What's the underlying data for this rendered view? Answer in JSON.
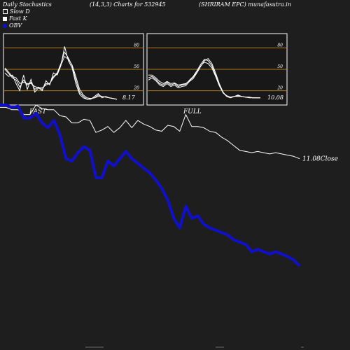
{
  "header": {
    "left": "Daily Stochastics",
    "center": "(14,3,3) Charts for 532945",
    "right": "(SHRIRAM EPC) munafasutra.in"
  },
  "legend": {
    "slow_d": "Slow  D",
    "fast_k": "Fast K",
    "obv": "OBV"
  },
  "colors": {
    "background": "#1e1e1e",
    "panel_background": "#181818",
    "level_line": "#b07a1e",
    "stoch_lines": "#ffffff",
    "close_line": "#ffffff",
    "obv_line": "#1010cc"
  },
  "chart_data": [
    {
      "type": "line",
      "panel_label": "FAST",
      "last_value_label": "8.17",
      "yticks": [
        "80",
        "50",
        "20"
      ],
      "ylim": [
        0,
        100
      ],
      "levels": [
        80,
        50,
        20
      ],
      "series": [
        {
          "values": [
            45,
            40,
            42,
            30,
            20,
            42,
            22,
            36,
            18,
            24,
            20,
            34,
            28,
            45,
            42,
            55,
            82,
            62,
            52,
            30,
            15,
            10,
            8,
            8,
            12,
            16,
            10,
            12,
            10,
            9,
            8
          ]
        },
        {
          "values": [
            50,
            44,
            38,
            35,
            25,
            35,
            28,
            32,
            22,
            25,
            22,
            30,
            30,
            40,
            45,
            58,
            74,
            66,
            55,
            35,
            18,
            12,
            8,
            9,
            10,
            14,
            12,
            11,
            10,
            9,
            8
          ]
        },
        {
          "values": [
            52,
            46,
            40,
            38,
            30,
            32,
            30,
            30,
            26,
            24,
            24,
            28,
            30,
            38,
            44,
            56,
            68,
            64,
            56,
            40,
            22,
            14,
            10,
            9,
            10,
            12,
            12,
            11,
            10,
            9,
            8
          ]
        }
      ]
    },
    {
      "type": "line",
      "panel_label": "FULL",
      "last_value_label": "10.08",
      "yticks": [
        "80",
        "50",
        "20"
      ],
      "ylim": [
        0,
        100
      ],
      "levels": [
        80,
        50,
        20
      ],
      "series": [
        {
          "values": [
            35,
            38,
            34,
            28,
            26,
            30,
            26,
            28,
            24,
            26,
            27,
            33,
            37,
            45,
            54,
            62,
            65,
            58,
            45,
            30,
            18,
            12,
            10,
            12,
            14,
            12,
            11,
            10,
            10,
            10,
            10
          ]
        },
        {
          "values": [
            38,
            40,
            36,
            30,
            28,
            32,
            28,
            30,
            26,
            28,
            29,
            35,
            40,
            48,
            57,
            64,
            62,
            55,
            42,
            28,
            17,
            12,
            11,
            12,
            13,
            12,
            11,
            11,
            10,
            10,
            10
          ]
        },
        {
          "values": [
            42,
            42,
            38,
            33,
            30,
            33,
            30,
            31,
            28,
            29,
            30,
            34,
            39,
            46,
            55,
            60,
            58,
            52,
            40,
            27,
            17,
            13,
            11,
            12,
            12,
            12,
            11,
            11,
            10,
            10,
            10
          ]
        }
      ]
    },
    {
      "type": "line",
      "close_label": "11.08Close",
      "series": [
        {
          "name": "Close",
          "values": [
            3,
            3,
            1,
            1,
            -3,
            -3,
            5,
            2,
            1,
            1,
            -4,
            -5,
            -10,
            -10,
            -7,
            -8,
            -18,
            -16,
            -13,
            -18,
            -14,
            -8,
            -14,
            -8,
            -11,
            -13,
            -16,
            -17,
            -12,
            -13,
            -17,
            -3,
            -13,
            -13,
            -14,
            -17,
            -18,
            -22,
            -25,
            -29,
            -33,
            -34,
            -35,
            -34,
            -35,
            -36,
            -35,
            -36,
            -37,
            -38,
            -40
          ]
        },
        {
          "name": "OBV",
          "values": [
            5,
            5,
            3,
            4,
            -6,
            -6,
            -2,
            -10,
            -14,
            -8,
            -20,
            -40,
            -42,
            -35,
            -30,
            -33,
            -56,
            -56,
            -42,
            -46,
            -40,
            -34,
            -40,
            -44,
            -48,
            -52,
            -58,
            -65,
            -75,
            -90,
            -98,
            -80,
            -90,
            -88,
            -95,
            -98,
            -100,
            -102,
            -104,
            -108,
            -110,
            -112,
            -118,
            -116,
            -118,
            -120,
            -118,
            -120,
            -122,
            -125,
            -130
          ]
        }
      ]
    }
  ]
}
